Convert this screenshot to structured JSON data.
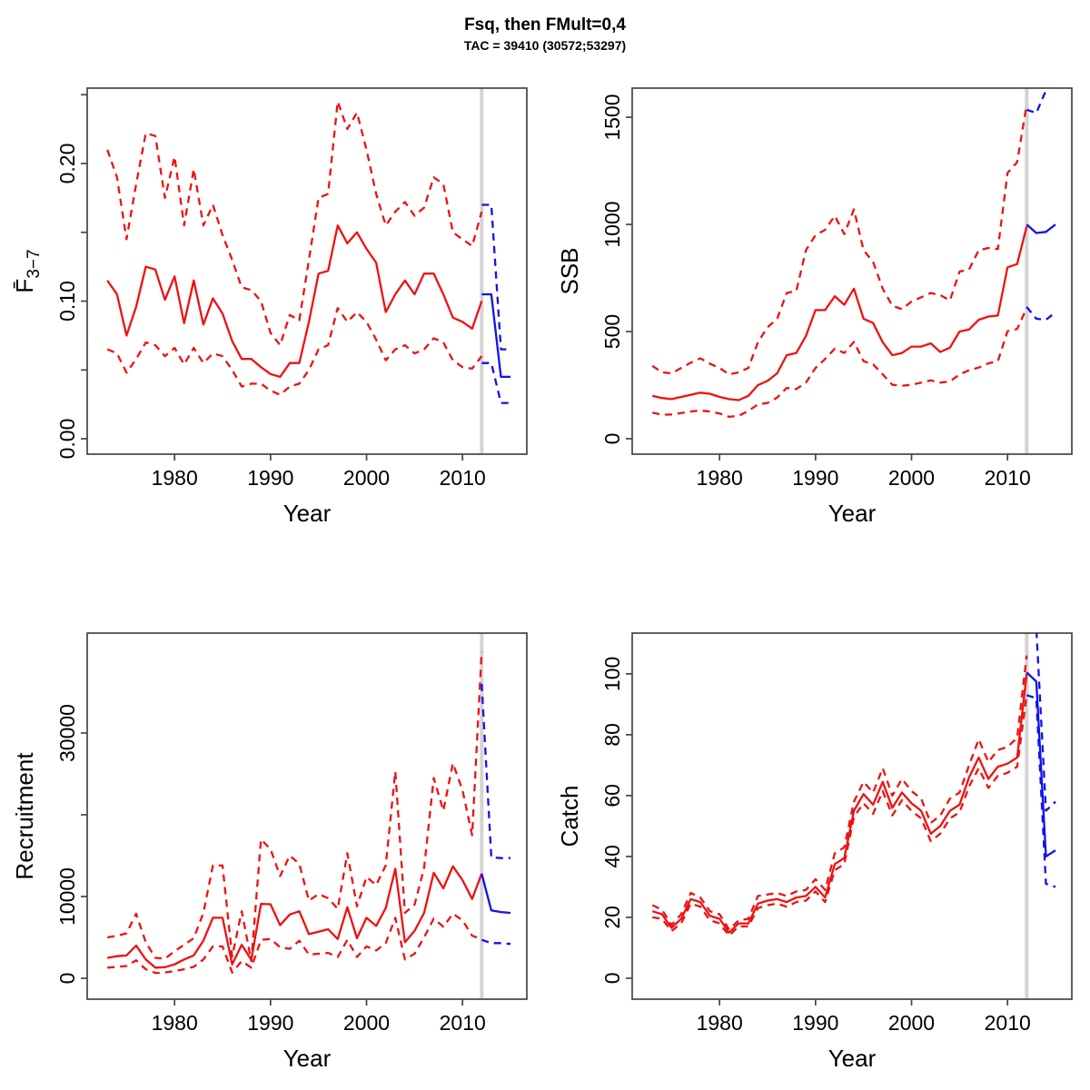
{
  "page": {
    "title": "Fsq, then FMult=0,4",
    "subtitle": "TAC = 39410 (30572;53297)"
  },
  "colors": {
    "historic": "#ee1111",
    "projection": "#1111ee",
    "divider": "#d4d4d4",
    "frame": "#454545",
    "text": "#000000"
  },
  "chart_data": [
    {
      "key": "fbar",
      "type": "line",
      "xlabel": "Year",
      "ylabel": "F̄",
      "ylabel_sub": "3−7",
      "xlim": [
        1970.9,
        2016.7
      ],
      "ylim": [
        -0.0112,
        0.2548
      ],
      "xticks": [
        1980,
        1990,
        2000,
        2010
      ],
      "yticks": [
        {
          "v": 0.0,
          "label": "0.00"
        },
        {
          "v": 0.05,
          "label": ""
        },
        {
          "v": 0.1,
          "label": "0.10"
        },
        {
          "v": 0.15,
          "label": ""
        },
        {
          "v": 0.2,
          "label": "0.20"
        },
        {
          "v": 0.25,
          "label": ""
        }
      ],
      "divider_year": 2012,
      "hist_start_year": 1973,
      "proj_start_year": 2012,
      "series": {
        "median_hist": [
          0.115,
          0.105,
          0.075,
          0.096,
          0.125,
          0.123,
          0.101,
          0.118,
          0.084,
          0.115,
          0.083,
          0.102,
          0.091,
          0.071,
          0.058,
          0.058,
          0.052,
          0.047,
          0.045,
          0.055,
          0.055,
          0.085,
          0.12,
          0.122,
          0.155,
          0.142,
          0.15,
          0.138,
          0.128,
          0.092,
          0.105,
          0.115,
          0.105,
          0.12,
          0.12,
          0.105,
          0.088,
          0.085,
          0.08,
          0.1
        ],
        "upper_hist": [
          0.21,
          0.19,
          0.145,
          0.185,
          0.222,
          0.22,
          0.175,
          0.205,
          0.155,
          0.196,
          0.155,
          0.17,
          0.148,
          0.13,
          0.11,
          0.108,
          0.1,
          0.077,
          0.068,
          0.09,
          0.086,
          0.13,
          0.175,
          0.178,
          0.245,
          0.225,
          0.237,
          0.21,
          0.178,
          0.155,
          0.165,
          0.172,
          0.162,
          0.168,
          0.19,
          0.185,
          0.15,
          0.145,
          0.14,
          0.165
        ],
        "lower_hist": [
          0.065,
          0.062,
          0.048,
          0.058,
          0.07,
          0.068,
          0.06,
          0.066,
          0.054,
          0.066,
          0.055,
          0.062,
          0.06,
          0.05,
          0.038,
          0.04,
          0.04,
          0.035,
          0.032,
          0.038,
          0.04,
          0.05,
          0.065,
          0.068,
          0.095,
          0.085,
          0.092,
          0.085,
          0.072,
          0.057,
          0.065,
          0.068,
          0.062,
          0.065,
          0.073,
          0.07,
          0.057,
          0.052,
          0.051,
          0.06
        ],
        "median_proj": [
          0.105,
          0.105,
          0.045,
          0.045
        ],
        "upper_proj": [
          0.17,
          0.17,
          0.065,
          0.065
        ],
        "lower_proj": [
          0.055,
          0.055,
          0.026,
          0.026
        ]
      }
    },
    {
      "key": "ssb",
      "type": "line",
      "xlabel": "Year",
      "ylabel": "SSB",
      "xlim": [
        1970.9,
        2016.7
      ],
      "ylim": [
        -72,
        1636
      ],
      "xticks": [
        1980,
        1990,
        2000,
        2010
      ],
      "yticks": [
        {
          "v": 0,
          "label": "0"
        },
        {
          "v": 500,
          "label": "500"
        },
        {
          "v": 1000,
          "label": "1000"
        },
        {
          "v": 1500,
          "label": "1500"
        }
      ],
      "divider_year": 2012,
      "hist_start_year": 1973,
      "proj_start_year": 2012,
      "series": {
        "median_hist": [
          200,
          190,
          185,
          195,
          205,
          215,
          210,
          195,
          185,
          180,
          200,
          250,
          270,
          305,
          390,
          400,
          480,
          600,
          600,
          665,
          625,
          700,
          560,
          540,
          450,
          390,
          400,
          430,
          430,
          445,
          405,
          425,
          500,
          510,
          555,
          570,
          575,
          800,
          815,
          990
        ],
        "upper_hist": [
          340,
          310,
          305,
          330,
          355,
          375,
          350,
          330,
          300,
          310,
          330,
          450,
          520,
          560,
          680,
          690,
          880,
          950,
          975,
          1040,
          955,
          1070,
          880,
          825,
          700,
          620,
          605,
          640,
          660,
          680,
          670,
          645,
          780,
          790,
          880,
          890,
          885,
          1240,
          1290,
          1560
        ],
        "lower_hist": [
          122,
          112,
          113,
          120,
          127,
          132,
          127,
          118,
          102,
          107,
          130,
          160,
          167,
          192,
          237,
          232,
          262,
          330,
          372,
          420,
          400,
          452,
          362,
          347,
          300,
          252,
          247,
          252,
          262,
          272,
          262,
          267,
          300,
          320,
          332,
          352,
          362,
          502,
          512,
          610
        ],
        "median_proj": [
          1000,
          960,
          965,
          1000
        ],
        "upper_proj": [
          1535,
          1520,
          1625,
          1720
        ],
        "lower_proj": [
          615,
          560,
          555,
          590
        ]
      }
    },
    {
      "key": "recruitment",
      "type": "line",
      "xlabel": "Year",
      "ylabel": "Recruitment",
      "xlim": [
        1970.9,
        2016.7
      ],
      "ylim": [
        -2556,
        42222
      ],
      "xticks": [
        1980,
        1990,
        2000,
        2010
      ],
      "yticks": [
        {
          "v": 0,
          "label": "0"
        },
        {
          "v": 10000,
          "label": "10000"
        },
        {
          "v": 20000,
          "label": ""
        },
        {
          "v": 30000,
          "label": "30000"
        }
      ],
      "divider_year": 2012,
      "hist_start_year": 1973,
      "proj_start_year": 2012,
      "series": {
        "median_hist": [
          2500,
          2700,
          2800,
          4000,
          2300,
          1300,
          1350,
          1700,
          2300,
          2800,
          4600,
          7400,
          7400,
          1700,
          4100,
          2250,
          9100,
          9050,
          6500,
          7800,
          8200,
          5400,
          5700,
          6000,
          4800,
          8700,
          4900,
          7400,
          6400,
          8600,
          13400,
          4400,
          5800,
          8000,
          12900,
          11000,
          13700,
          12000,
          9700,
          12800
        ],
        "upper_hist": [
          5000,
          5200,
          5500,
          7900,
          4400,
          2500,
          2400,
          3300,
          4100,
          4900,
          8000,
          13800,
          13800,
          2650,
          8200,
          2100,
          17000,
          15800,
          12500,
          15000,
          14000,
          9500,
          10300,
          9800,
          8500,
          15300,
          8800,
          12400,
          11400,
          13800,
          25300,
          8000,
          9000,
          13500,
          24500,
          20500,
          26300,
          23000,
          17500,
          40000
        ],
        "lower_hist": [
          1300,
          1400,
          1500,
          2200,
          1100,
          650,
          700,
          900,
          1100,
          1400,
          2300,
          3900,
          3900,
          700,
          2100,
          1300,
          4700,
          4800,
          3800,
          3600,
          4600,
          2900,
          3000,
          3100,
          2600,
          4700,
          2600,
          3900,
          3400,
          4300,
          7400,
          2300,
          3000,
          5000,
          7300,
          6300,
          7900,
          7100,
          5200,
          4800
        ],
        "median_proj": [
          12800,
          8300,
          8100,
          8000
        ],
        "upper_proj": [
          36000,
          14800,
          14700,
          14700
        ],
        "lower_proj": [
          4700,
          4300,
          4300,
          4200
        ]
      }
    },
    {
      "key": "catch",
      "type": "line",
      "xlabel": "Year",
      "ylabel": "Catch",
      "xlim": [
        1970.9,
        2016.7
      ],
      "ylim": [
        -6.9,
        113.4
      ],
      "xticks": [
        1980,
        1990,
        2000,
        2010
      ],
      "yticks": [
        {
          "v": 0,
          "label": "0"
        },
        {
          "v": 20,
          "label": "20"
        },
        {
          "v": 40,
          "label": "40"
        },
        {
          "v": 60,
          "label": "60"
        },
        {
          "v": 80,
          "label": "80"
        },
        {
          "v": 100,
          "label": "100"
        }
      ],
      "divider_year": 2012,
      "hist_start_year": 1973,
      "proj_start_year": 2012,
      "series": {
        "median_hist": [
          22,
          21,
          16.5,
          19.5,
          26,
          25,
          20.5,
          19.5,
          15,
          18,
          18,
          24.5,
          25.5,
          26,
          25,
          26.5,
          27,
          30,
          26.5,
          37.5,
          39.5,
          55,
          60.5,
          57,
          64.5,
          56,
          61,
          57.5,
          55,
          47.5,
          50,
          55,
          57,
          66,
          72.5,
          65.5,
          69.5,
          70.5,
          72.5,
          100
        ],
        "upper_hist": [
          24,
          22.5,
          17.5,
          21,
          28,
          26.5,
          22,
          21,
          16,
          19,
          19.5,
          27,
          27.5,
          28,
          27,
          28.5,
          29,
          32.5,
          29,
          41,
          43,
          58,
          64.5,
          61,
          69,
          60,
          65.5,
          61.5,
          59,
          51,
          53.5,
          59,
          61,
          70,
          78.5,
          71,
          75,
          76,
          79,
          106
        ],
        "lower_hist": [
          20,
          19.5,
          15.5,
          18,
          24.5,
          23.5,
          19,
          18,
          14,
          17,
          17,
          23,
          24,
          24.5,
          23.5,
          25,
          25.5,
          28.5,
          25,
          35.5,
          37.5,
          53,
          57.5,
          54,
          61.5,
          53.5,
          58.5,
          55,
          52.5,
          45,
          47.5,
          52.5,
          54.5,
          63,
          69,
          62.5,
          66.5,
          67.5,
          69.5,
          93
        ],
        "median_proj": [
          100.5,
          97.5,
          40,
          42
        ],
        "upper_proj": [
          116,
          115,
          55,
          58
        ],
        "lower_proj": [
          93,
          92,
          31,
          30
        ]
      }
    }
  ]
}
